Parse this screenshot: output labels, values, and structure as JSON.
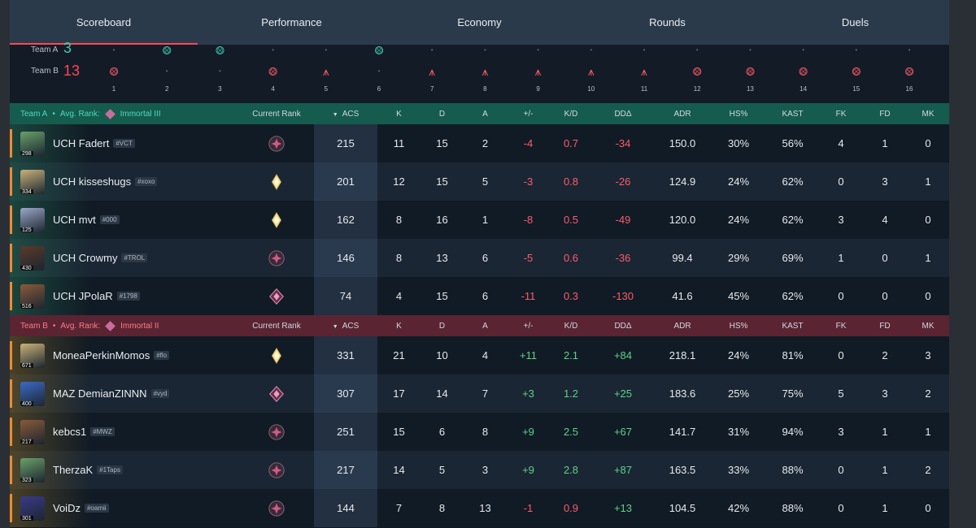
{
  "tabs": [
    "Scoreboard",
    "Performance",
    "Economy",
    "Rounds",
    "Duels"
  ],
  "timeline": {
    "team_a_label": "Team A",
    "team_b_label": "Team B",
    "team_a_score": "3",
    "team_b_score": "13",
    "rounds": [
      {
        "n": "1",
        "a": "",
        "b": "elim"
      },
      {
        "n": "2",
        "a": "elim",
        "b": ""
      },
      {
        "n": "3",
        "a": "elim",
        "b": ""
      },
      {
        "n": "4",
        "a": "",
        "b": "elim"
      },
      {
        "n": "5",
        "a": "",
        "b": "spike"
      },
      {
        "n": "6",
        "a": "elim",
        "b": ""
      },
      {
        "n": "7",
        "a": "",
        "b": "spike"
      },
      {
        "n": "8",
        "a": "",
        "b": "spike"
      },
      {
        "n": "9",
        "a": "",
        "b": "spike"
      },
      {
        "n": "10",
        "a": "",
        "b": "spike"
      },
      {
        "n": "11",
        "a": "",
        "b": "spike"
      },
      {
        "n": "12",
        "a": "",
        "b": "elim"
      },
      {
        "n": "13",
        "a": "",
        "b": "elim"
      },
      {
        "n": "14",
        "a": "",
        "b": "elim"
      },
      {
        "n": "15",
        "a": "",
        "b": "elim"
      },
      {
        "n": "16",
        "a": "",
        "b": "elim"
      }
    ]
  },
  "columns": {
    "current_rank": "Current Rank",
    "acs": "ACS",
    "k": "K",
    "d": "D",
    "a": "A",
    "pm": "+/-",
    "kd": "K/D",
    "dd": "DDΔ",
    "adr": "ADR",
    "hs": "HS%",
    "kast": "KAST",
    "fk": "FK",
    "fd": "FD",
    "mk": "MK"
  },
  "team_a": {
    "name": "Team A",
    "sep": "•",
    "avg_label": "Avg. Rank:",
    "avg_rank": "Immortal III",
    "players": [
      {
        "name": "UCH Fadert",
        "tag": "#VCT",
        "level": "298",
        "rank": "immortal",
        "acs": "215",
        "k": "11",
        "d": "15",
        "a": "2",
        "pm": "-4",
        "kd": "0.7",
        "dd": "-34",
        "adr": "150.0",
        "hs": "30%",
        "kast": "56%",
        "fk": "4",
        "fd": "1",
        "mk": "0",
        "avatar_color": "#6aa06a"
      },
      {
        "name": "UCH kisseshugs",
        "tag": "#xoxo",
        "level": "334",
        "rank": "radiant",
        "acs": "201",
        "k": "12",
        "d": "15",
        "a": "5",
        "pm": "-3",
        "kd": "0.8",
        "dd": "-26",
        "adr": "124.9",
        "hs": "24%",
        "kast": "62%",
        "fk": "0",
        "fd": "3",
        "mk": "1",
        "avatar_color": "#c9b27a"
      },
      {
        "name": "UCH mvt",
        "tag": "#000",
        "level": "125",
        "rank": "radiant",
        "acs": "162",
        "k": "8",
        "d": "16",
        "a": "1",
        "pm": "-8",
        "kd": "0.5",
        "dd": "-49",
        "adr": "120.0",
        "hs": "24%",
        "kast": "62%",
        "fk": "3",
        "fd": "4",
        "mk": "0",
        "avatar_color": "#9aa7c8"
      },
      {
        "name": "UCH Crowmy",
        "tag": "#TROL",
        "level": "430",
        "rank": "immortal",
        "acs": "146",
        "k": "8",
        "d": "13",
        "a": "6",
        "pm": "-5",
        "kd": "0.6",
        "dd": "-36",
        "adr": "99.4",
        "hs": "29%",
        "kast": "69%",
        "fk": "1",
        "fd": "0",
        "mk": "1",
        "avatar_color": "#5a3a2a"
      },
      {
        "name": "UCH JPolaR",
        "tag": "#1798",
        "level": "516",
        "rank": "ascendant",
        "acs": "74",
        "k": "4",
        "d": "15",
        "a": "6",
        "pm": "-11",
        "kd": "0.3",
        "dd": "-130",
        "adr": "41.6",
        "hs": "45%",
        "kast": "62%",
        "fk": "0",
        "fd": "0",
        "mk": "0",
        "avatar_color": "#8a5a3a"
      }
    ]
  },
  "team_b": {
    "name": "Team B",
    "sep": "•",
    "avg_label": "Avg. Rank:",
    "avg_rank": "Immortal II",
    "players": [
      {
        "name": "MoneaPerkinMomos",
        "tag": "#flo",
        "level": "671",
        "rank": "radiant",
        "acs": "331",
        "k": "21",
        "d": "10",
        "a": "4",
        "pm": "+11",
        "kd": "2.1",
        "dd": "+84",
        "adr": "218.1",
        "hs": "24%",
        "kast": "81%",
        "fk": "0",
        "fd": "2",
        "mk": "3",
        "avatar_color": "#c9b27a"
      },
      {
        "name": "MAZ DemianZINNN",
        "tag": "#vyd",
        "level": "400",
        "rank": "ascendant",
        "acs": "307",
        "k": "17",
        "d": "14",
        "a": "7",
        "pm": "+3",
        "kd": "1.2",
        "dd": "+25",
        "adr": "183.6",
        "hs": "25%",
        "kast": "75%",
        "fk": "5",
        "fd": "3",
        "mk": "2",
        "avatar_color": "#3a6ac8"
      },
      {
        "name": "kebcs1",
        "tag": "#MWZ",
        "level": "217",
        "rank": "immortal",
        "acs": "251",
        "k": "15",
        "d": "6",
        "a": "8",
        "pm": "+9",
        "kd": "2.5",
        "dd": "+67",
        "adr": "141.7",
        "hs": "31%",
        "kast": "94%",
        "fk": "3",
        "fd": "1",
        "mk": "1",
        "avatar_color": "#8a5a3a"
      },
      {
        "name": "TherzaK",
        "tag": "#1Taps",
        "level": "323",
        "rank": "immortal",
        "acs": "217",
        "k": "14",
        "d": "5",
        "a": "3",
        "pm": "+9",
        "kd": "2.8",
        "dd": "+87",
        "adr": "163.5",
        "hs": "33%",
        "kast": "88%",
        "fk": "0",
        "fd": "1",
        "mk": "2",
        "avatar_color": "#6aa06a"
      },
      {
        "name": "VoiDz",
        "tag": "#oamii",
        "level": "301",
        "rank": "immortal",
        "acs": "144",
        "k": "7",
        "d": "8",
        "a": "13",
        "pm": "-1",
        "kd": "0.9",
        "dd": "+13",
        "adr": "104.5",
        "hs": "42%",
        "kast": "88%",
        "fk": "0",
        "fd": "1",
        "mk": "0",
        "avatar_color": "#3a3a8a"
      }
    ]
  },
  "colors": {
    "accent_red": "#ff4655",
    "team_a": "#3ccab3",
    "negative": "#ff5a6a",
    "positive": "#5dd28a"
  }
}
